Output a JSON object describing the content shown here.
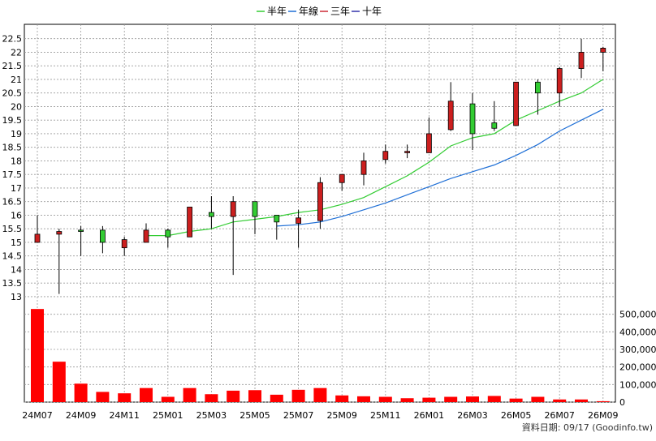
{
  "chart_data": {
    "type": "candlestick",
    "legend": [
      {
        "name": "半年",
        "color": "#33cc33"
      },
      {
        "name": "年線",
        "color": "#1f6fd6"
      },
      {
        "name": "三年",
        "color": "#cc2a36"
      },
      {
        "name": "十年",
        "color": "#3333aa"
      }
    ],
    "legend_placement": "top-center",
    "price_axis": {
      "ylim": [
        12.7,
        22.7
      ],
      "ticks": [
        "22.5",
        "22",
        "21.5",
        "21",
        "20.5",
        "20",
        "19.5",
        "19",
        "18.5",
        "18",
        "17.5",
        "17",
        "16.5",
        "16",
        "15.5",
        "15",
        "14.5",
        "14",
        "13.5",
        "13"
      ],
      "side": "left"
    },
    "volume_axis": {
      "ylim": [
        0,
        540000
      ],
      "ticks": [
        "500,000",
        "400,000",
        "300,000",
        "200,000",
        "100,000",
        "0"
      ],
      "side": "right"
    },
    "x_tick_labels": [
      "24M07",
      "24M09",
      "24M11",
      "25M01",
      "25M03",
      "25M05",
      "25M07",
      "25M09",
      "25M11",
      "26M01",
      "26M03",
      "26M05",
      "26M07",
      "26M09"
    ],
    "grid": true,
    "candle_colors": {
      "up": "#cc1f1f",
      "down": "#33cc33"
    },
    "volume_color": "#ff0000",
    "candles": [
      {
        "open": 15.0,
        "high": 16.0,
        "low": 15.0,
        "close": 15.3
      },
      {
        "open": 15.3,
        "high": 15.5,
        "low": 13.1,
        "close": 15.4
      },
      {
        "open": 15.45,
        "high": 15.6,
        "low": 14.5,
        "close": 15.4
      },
      {
        "open": 15.45,
        "high": 15.6,
        "low": 14.6,
        "close": 15.0
      },
      {
        "open": 14.8,
        "high": 15.2,
        "low": 14.5,
        "close": 15.1
      },
      {
        "open": 15.0,
        "high": 15.7,
        "low": 15.0,
        "close": 15.45
      },
      {
        "open": 15.45,
        "high": 15.5,
        "low": 14.8,
        "close": 15.2
      },
      {
        "open": 15.2,
        "high": 16.3,
        "low": 15.2,
        "close": 16.3
      },
      {
        "open": 16.1,
        "high": 16.7,
        "low": 15.5,
        "close": 15.95
      },
      {
        "open": 15.95,
        "high": 16.7,
        "low": 13.8,
        "close": 16.5
      },
      {
        "open": 16.5,
        "high": 16.5,
        "low": 15.3,
        "close": 15.95
      },
      {
        "open": 16.0,
        "high": 16.0,
        "low": 15.1,
        "close": 15.75
      },
      {
        "open": 15.7,
        "high": 16.2,
        "low": 14.8,
        "close": 15.9
      },
      {
        "open": 15.8,
        "high": 17.4,
        "low": 15.5,
        "close": 17.2
      },
      {
        "open": 17.2,
        "high": 17.5,
        "low": 16.9,
        "close": 17.5
      },
      {
        "open": 17.5,
        "high": 18.3,
        "low": 17.1,
        "close": 18.0
      },
      {
        "open": 18.05,
        "high": 18.6,
        "low": 17.9,
        "close": 18.35
      },
      {
        "open": 18.3,
        "high": 18.6,
        "low": 18.1,
        "close": 18.35
      },
      {
        "open": 18.3,
        "high": 19.6,
        "low": 18.3,
        "close": 19.0
      },
      {
        "open": 19.15,
        "high": 20.9,
        "low": 19.1,
        "close": 20.2
      },
      {
        "open": 20.1,
        "high": 20.5,
        "low": 18.4,
        "close": 19.0
      },
      {
        "open": 19.4,
        "high": 20.2,
        "low": 19.1,
        "close": 19.2
      },
      {
        "open": 19.3,
        "high": 20.9,
        "low": 19.3,
        "close": 20.9
      },
      {
        "open": 20.9,
        "high": 21.0,
        "low": 19.7,
        "close": 20.5
      },
      {
        "open": 20.5,
        "high": 21.45,
        "low": 20.0,
        "close": 21.4
      },
      {
        "open": 21.4,
        "high": 22.5,
        "low": 21.05,
        "close": 22.0
      },
      {
        "open": 22.0,
        "high": 22.2,
        "low": 21.3,
        "close": 22.15
      }
    ],
    "series": [
      {
        "name": "半年",
        "start_index": 5,
        "values": [
          15.25,
          15.25,
          15.4,
          15.5,
          15.75,
          15.85,
          15.95,
          16.1,
          16.2,
          16.4,
          16.65,
          17.05,
          17.45,
          17.95,
          18.55,
          18.85,
          19.0,
          19.5,
          19.85,
          20.2,
          20.5,
          21.0
        ]
      },
      {
        "name": "年線",
        "start_index": 11,
        "values": [
          15.6,
          15.65,
          15.75,
          15.95,
          16.2,
          16.45,
          16.75,
          17.05,
          17.35,
          17.6,
          17.85,
          18.2,
          18.6,
          19.1,
          19.5,
          19.9
        ]
      }
    ],
    "volumes": [
      530000,
      230000,
      105000,
      58000,
      50000,
      80000,
      30000,
      80000,
      45000,
      65000,
      68000,
      42000,
      70000,
      80000,
      38000,
      33000,
      30000,
      22000,
      25000,
      30000,
      32000,
      35000,
      20000,
      30000,
      15000,
      15000,
      5000
    ],
    "footer": "資料日期: 09/17  (Goodinfo.tw)"
  }
}
